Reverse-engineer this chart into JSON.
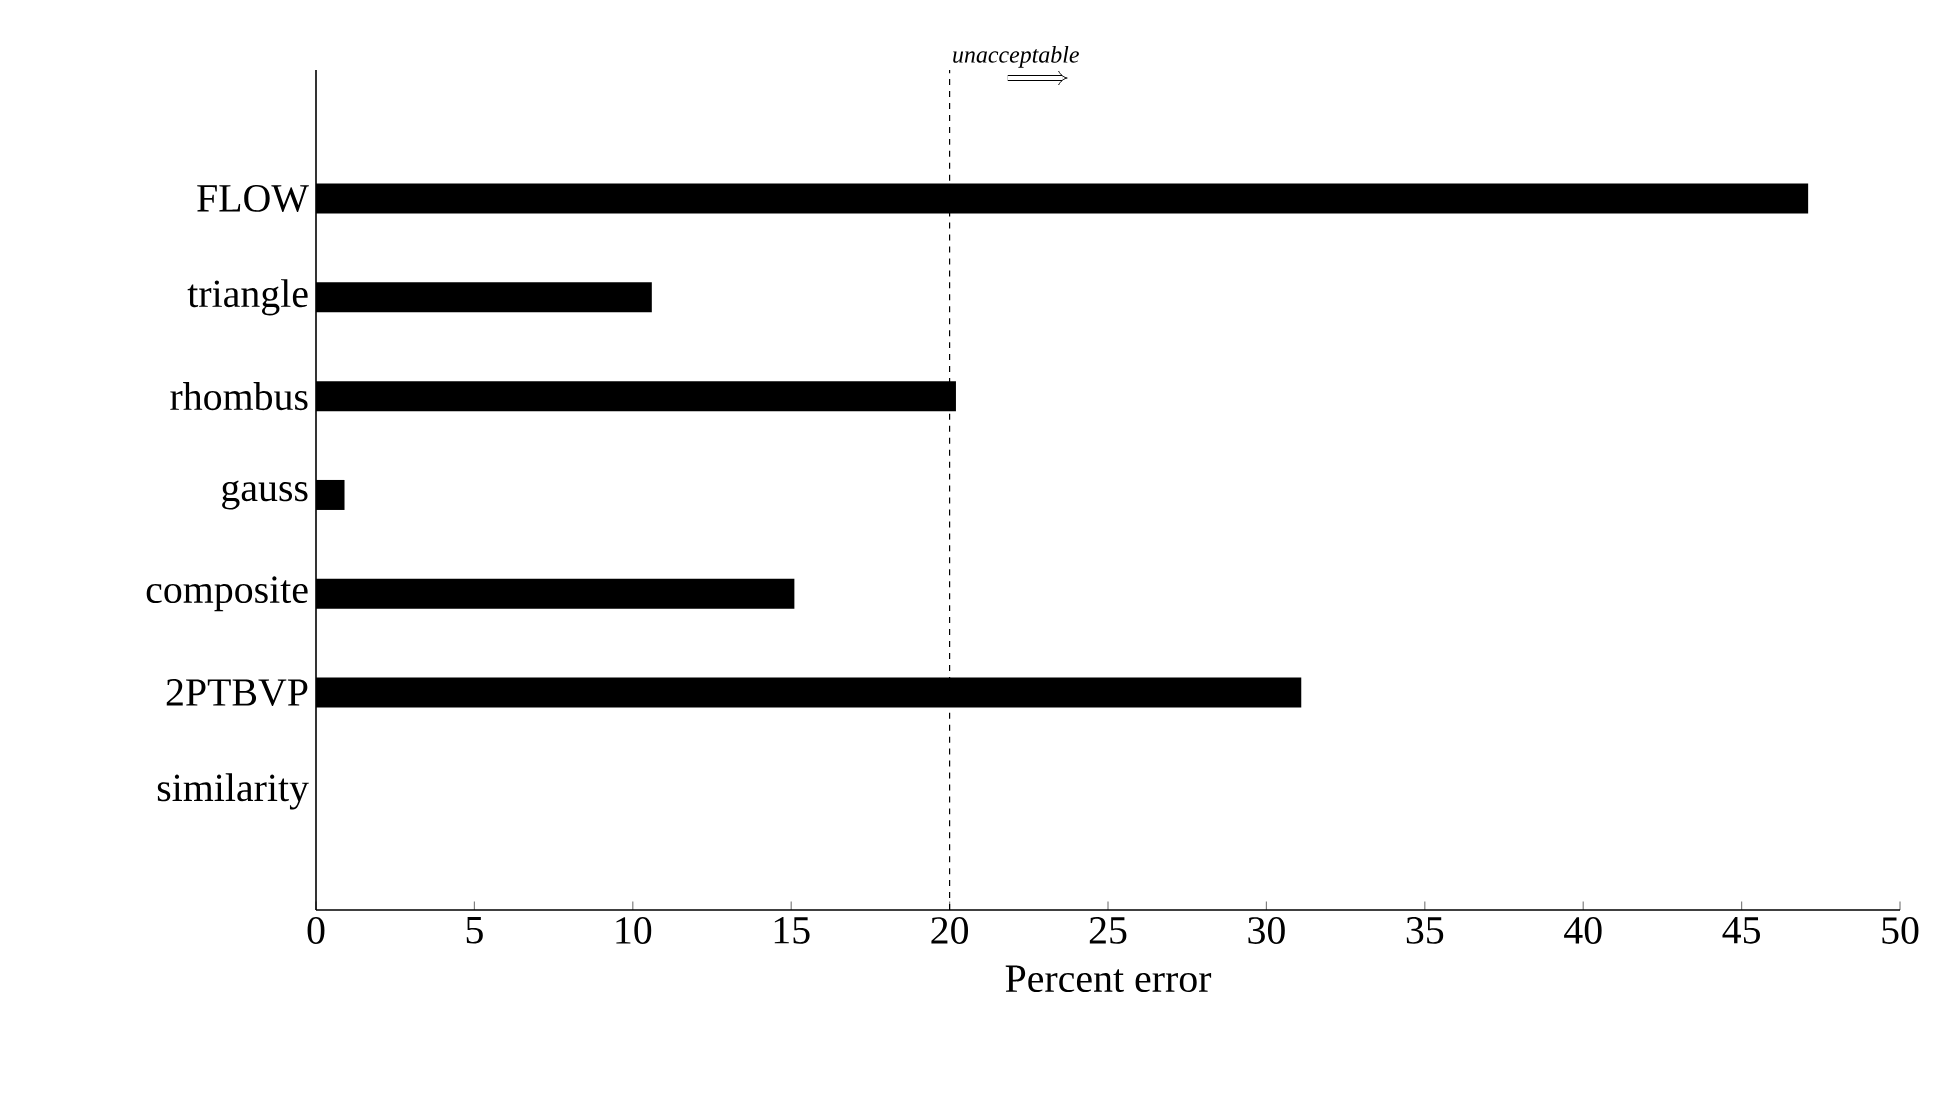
{
  "chart_data": {
    "type": "bar",
    "orientation": "horizontal",
    "categories": [
      "FLOW",
      "triangle",
      "rhombus",
      "gauss",
      "composite",
      "2PTBVP",
      "similarity"
    ],
    "values": [
      47.1,
      10.6,
      20.2,
      0.9,
      15.1,
      31.1,
      null
    ],
    "color": "#000000",
    "xlabel": "Percent error",
    "xlim": [
      0,
      50
    ],
    "xticks": [
      0,
      5,
      10,
      15,
      20,
      25,
      30,
      35,
      40,
      45,
      50
    ],
    "ref_lines": [
      {
        "axis": "x",
        "value": 20,
        "label": "unacceptable",
        "line_style": "dashed"
      }
    ]
  }
}
